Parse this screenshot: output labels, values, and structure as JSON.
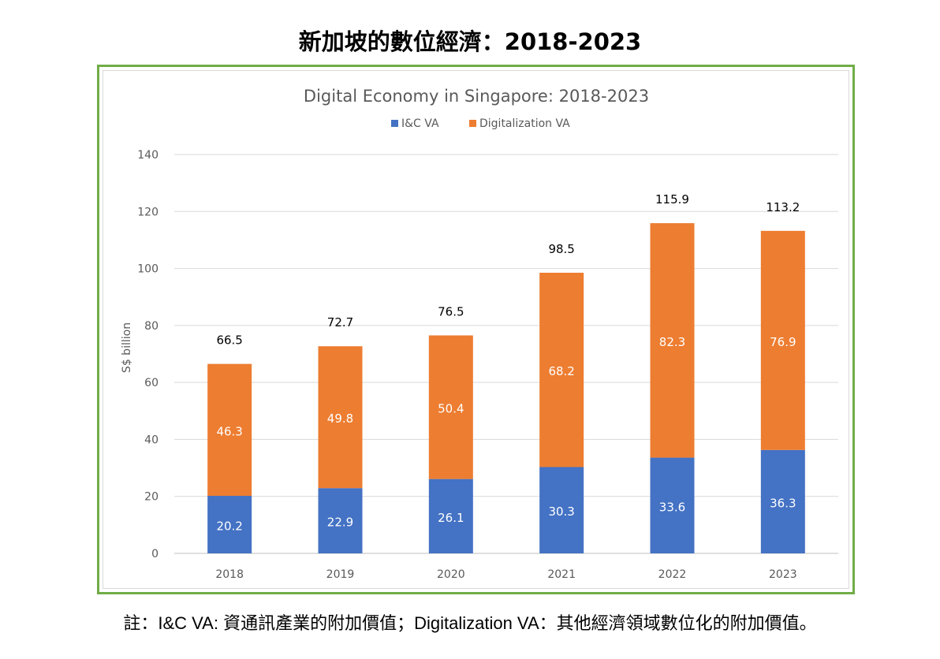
{
  "page_title": "新加坡的數位經濟：2018-2023",
  "note": "註：I&C VA:  資通訊產業的附加價值；Digitalization VA：其他經濟領域數位化的附加價值。",
  "chart_data": {
    "type": "bar",
    "stacked": true,
    "title": "Digital Economy in Singapore: 2018-2023",
    "xlabel": "",
    "ylabel": "S$ billion",
    "ylim": [
      0,
      140
    ],
    "yticks": [
      "0",
      "20",
      "40",
      "60",
      "80",
      "100",
      "120",
      "140"
    ],
    "categories": [
      "2018",
      "2019",
      "2020",
      "2021",
      "2022",
      "2023"
    ],
    "series": [
      {
        "name": "I&C VA",
        "color": "#4472c4",
        "values": [
          20.2,
          22.9,
          26.1,
          30.3,
          33.6,
          36.3
        ],
        "labels": [
          "20.2",
          "22.9",
          "26.1",
          "30.3",
          "33.6",
          "36.3"
        ]
      },
      {
        "name": "Digitalization VA",
        "color": "#ed7d31",
        "values": [
          46.3,
          49.8,
          50.4,
          68.2,
          82.3,
          76.9
        ],
        "labels": [
          "46.3",
          "49.8",
          "50.4",
          "68.2",
          "82.3",
          "76.9"
        ]
      }
    ],
    "totals": [
      "66.5",
      "72.7",
      "76.5",
      "98.5",
      "115.9",
      "113.2"
    ],
    "legend_position": "top-center",
    "grid": true
  }
}
